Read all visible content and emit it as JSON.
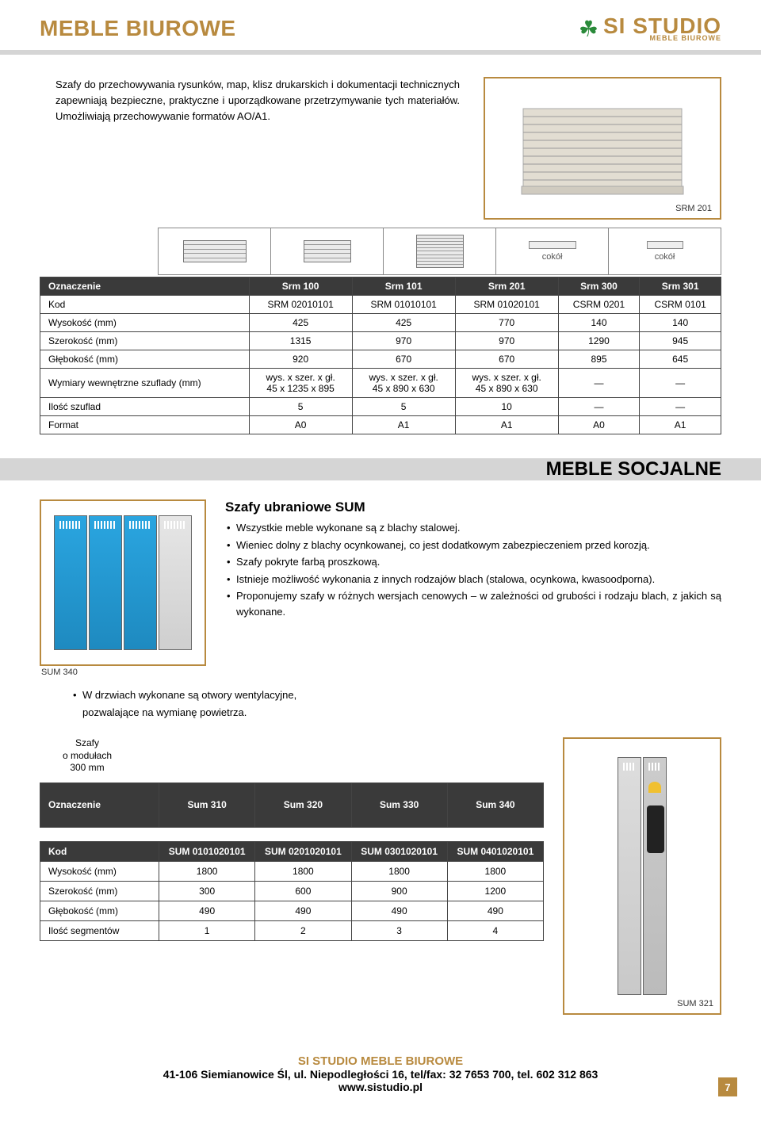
{
  "header": {
    "page_title": "MEBLE BIUROWE",
    "logo_main": "SI STUDIO",
    "logo_sub": "MEBLE BIUROWE"
  },
  "colors": {
    "accent": "#b88a3f",
    "table_header_bg": "#3a3a3a",
    "table_header_fg": "#ffffff",
    "band": "#d5d5d5",
    "locker_blue": "#1e8ac0"
  },
  "intro": {
    "text": "Szafy do przechowywania rysunków, map, klisz drukarskich i dokumentacji technicznych zapewniają bezpieczne, praktyczne i uporządkowane przetrzymywanie tych materiałów. Umożliwiają przechowywanie formatów AO/A1.",
    "image_caption": "SRM 201"
  },
  "table1": {
    "thumb_headers": [
      "",
      "",
      "",
      "cokół",
      "cokół"
    ],
    "rows": {
      "head": [
        "Oznaczenie",
        "Srm 100",
        "Srm 101",
        "Srm 201",
        "Srm 300",
        "Srm 301"
      ],
      "data": [
        {
          "label": "Kod",
          "v": [
            "SRM 02010101",
            "SRM 01010101",
            "SRM 01020101",
            "CSRM 0201",
            "CSRM 0101"
          ]
        },
        {
          "label": "Wysokość (mm)",
          "v": [
            "425",
            "425",
            "770",
            "140",
            "140"
          ]
        },
        {
          "label": "Szerokość (mm)",
          "v": [
            "1315",
            "970",
            "970",
            "1290",
            "945"
          ]
        },
        {
          "label": "Głębokość (mm)",
          "v": [
            "920",
            "670",
            "670",
            "895",
            "645"
          ]
        },
        {
          "label": "Wymiary wewnętrzne szuflady (mm)",
          "v": [
            "wys. x szer. x gł.\n45 x 1235 x 895",
            "wys. x szer. x gł.\n45 x 890 x 630",
            "wys. x szer. x gł.\n45 x 890 x 630",
            "—",
            "—"
          ]
        },
        {
          "label": "Ilość szuflad",
          "v": [
            "5",
            "5",
            "10",
            "—",
            "—"
          ]
        },
        {
          "label": "Format",
          "v": [
            "A0",
            "A1",
            "A1",
            "A0",
            "A1"
          ]
        }
      ]
    }
  },
  "section2": {
    "title": "MEBLE SOCJALNE",
    "subtitle": "Szafy ubraniowe SUM",
    "img_caption": "SUM 340",
    "bullets": [
      "Wszystkie meble wykonane są z blachy stalowej.",
      "Wieniec dolny z blachy ocynkowanej, co jest dodatkowym zabezpieczeniem przed korozją.",
      "Szafy pokryte farbą proszkową.",
      "Istnieje możliwość wykonania z innych rodzajów blach (stalowa, ocynkowa, kwasoodporna).",
      "Proponujemy szafy w różnych wersjach cenowych – w zależności od grubości i rodzaju blach, z jakich są wykonane."
    ],
    "vent": {
      "l1": "W drzwiach wykonane są otwory wentylacyjne,",
      "l2": "pozwalające na wymianę powietrza."
    }
  },
  "table2": {
    "module_label": "Szafy\no modułach\n300 mm",
    "head": [
      "Oznaczenie",
      "Sum 310",
      "Sum 320",
      "Sum 330",
      "Sum 340"
    ],
    "rows": [
      {
        "label": "Kod",
        "v": [
          "SUM 0101020101",
          "SUM 0201020101",
          "SUM 0301020101",
          "SUM 0401020101"
        ]
      },
      {
        "label": "Wysokość (mm)",
        "v": [
          "1800",
          "1800",
          "1800",
          "1800"
        ]
      },
      {
        "label": "Szerokość (mm)",
        "v": [
          "300",
          "600",
          "900",
          "1200"
        ]
      },
      {
        "label": "Głębokość (mm)",
        "v": [
          "490",
          "490",
          "490",
          "490"
        ]
      },
      {
        "label": "Ilość segmentów",
        "v": [
          "1",
          "2",
          "3",
          "4"
        ]
      }
    ],
    "right_caption": "SUM 321"
  },
  "footer": {
    "title": "SI STUDIO MEBLE BIUROWE",
    "addr": "41-106 Siemianowice Śl, ul. Niepodległości 16, tel/fax: 32 7653 700, tel. 602 312 863",
    "url": "www.sistudio.pl",
    "page": "7"
  }
}
